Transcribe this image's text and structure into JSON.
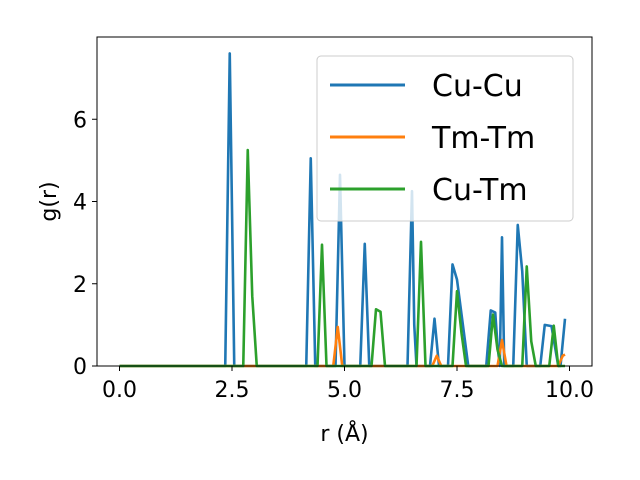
{
  "chart_data": {
    "type": "line",
    "xlabel": "r (Å)",
    "ylabel": "g(r)",
    "xlim": [
      -0.5,
      10.5
    ],
    "ylim": [
      0,
      8.0
    ],
    "xticks": [
      0.0,
      2.5,
      5.0,
      7.5,
      10.0
    ],
    "xtick_labels": [
      "0.0",
      "2.5",
      "5.0",
      "7.5",
      "10.0"
    ],
    "yticks": [
      0,
      2,
      4,
      6
    ],
    "ytick_labels": [
      "0",
      "2",
      "4",
      "6"
    ],
    "grid": false,
    "legend_position": "top-right",
    "series": [
      {
        "name": "Cu-Cu",
        "color": "#1f77b4",
        "x": [
          0.0,
          2.25,
          2.35,
          2.45,
          2.55,
          2.65,
          4.05,
          4.15,
          4.25,
          4.35,
          4.45,
          4.8,
          4.9,
          5.0,
          5.35,
          5.45,
          5.55,
          5.65,
          6.4,
          6.5,
          6.55,
          6.6,
          6.9,
          7.0,
          7.1,
          7.3,
          7.4,
          7.5,
          7.75,
          7.85,
          7.95,
          8.05,
          8.15,
          8.25,
          8.35,
          8.4,
          8.45,
          8.5,
          8.55,
          8.65,
          8.75,
          8.85,
          8.95,
          9.05,
          9.35,
          9.45,
          9.6,
          9.75,
          9.8,
          9.9
        ],
        "y": [
          0,
          0,
          0,
          7.6,
          0,
          0,
          0,
          0,
          5.05,
          0,
          0,
          0,
          4.65,
          0,
          0,
          2.97,
          0,
          0,
          0,
          4.25,
          1.0,
          0,
          0,
          1.15,
          0,
          0,
          2.47,
          2.1,
          0,
          0,
          0,
          0,
          0,
          1.35,
          1.3,
          0.5,
          0,
          3.13,
          0,
          0,
          0,
          3.43,
          2.3,
          0,
          0,
          1.0,
          0.97,
          0,
          0,
          1.15
        ]
      },
      {
        "name": "Tm-Tm",
        "color": "#ff7f0e",
        "x": [
          0.0,
          4.75,
          4.85,
          4.95,
          5.1,
          6.95,
          7.05,
          7.15,
          8.4,
          8.5,
          8.6,
          9.75,
          9.85,
          9.9
        ],
        "y": [
          0,
          0,
          0.95,
          0,
          0,
          0,
          0.25,
          0,
          0,
          0.63,
          0,
          0,
          0.25,
          0.28
        ]
      },
      {
        "name": "Cu-Tm",
        "color": "#2ca02c",
        "x": [
          0.0,
          2.75,
          2.85,
          2.95,
          3.05,
          3.15,
          4.4,
          4.5,
          4.6,
          5.6,
          5.7,
          5.8,
          5.9,
          6.6,
          6.7,
          6.8,
          7.4,
          7.5,
          7.6,
          7.7,
          8.2,
          8.3,
          8.4,
          8.5,
          8.95,
          9.05,
          9.15,
          9.25,
          9.55,
          9.65,
          9.75,
          9.9
        ],
        "y": [
          0,
          0,
          5.25,
          1.7,
          0,
          0,
          0,
          2.95,
          0,
          0,
          1.38,
          1.32,
          0,
          0,
          3.02,
          0,
          0,
          1.82,
          0.8,
          0,
          0,
          1.25,
          0.4,
          0,
          0,
          2.42,
          0.6,
          0,
          0,
          0.98,
          0,
          0
        ]
      }
    ]
  }
}
